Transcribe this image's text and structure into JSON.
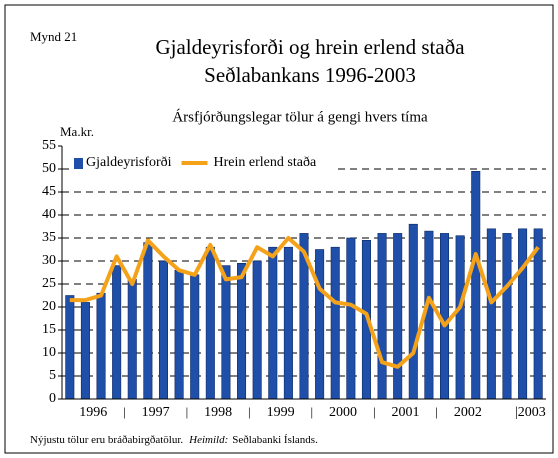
{
  "chart_data": {
    "type": "bar_line",
    "figure_label": "Mynd 21",
    "title": "Gjaldeyrisforði og hrein erlend staða",
    "title_line2": "Seðlabankans 1996-2003",
    "subtitle": "Ársfjórðungslegar tölur á gengi hvers tíma",
    "ylabel": "Ma.kr.",
    "categories": [
      null,
      "1996",
      null,
      null,
      null,
      "1997",
      null,
      null,
      null,
      "1998",
      null,
      null,
      null,
      "1999",
      null,
      null,
      null,
      "2000",
      null,
      null,
      null,
      "2001",
      null,
      null,
      null,
      "2002",
      null,
      null,
      null,
      "|2003",
      null
    ],
    "series": [
      {
        "name": "Gjaldeyrisforði",
        "color": "#1f4fa8",
        "kind": "bar",
        "values": [
          22.5,
          21,
          23,
          29,
          26,
          34,
          30,
          28,
          27,
          33,
          29,
          29.5,
          30,
          33,
          33,
          36,
          32.5,
          33,
          35,
          34.5,
          36,
          36,
          38,
          36.5,
          36,
          35.5,
          49.5,
          37,
          36,
          37,
          37
        ]
      },
      {
        "name": "Hrein erlend staða",
        "color": "#f5a21b",
        "kind": "line",
        "values": [
          21.5,
          21.5,
          22.5,
          31,
          25,
          34.5,
          31,
          28,
          27,
          33.5,
          26,
          26.5,
          33,
          31,
          35,
          32,
          24,
          21,
          20.5,
          18.5,
          8,
          7,
          10,
          22,
          16,
          20,
          31.5,
          21,
          24.5,
          28.5,
          33
        ]
      }
    ],
    "ylim": [
      0,
      55
    ],
    "yticks": [
      0,
      5,
      10,
      15,
      20,
      25,
      30,
      35,
      40,
      45,
      50,
      55
    ],
    "grid": true,
    "legend": "top-left",
    "footnote": "Nýjustu tölur eru bráðabirgðatölur.",
    "source_label": "Heimild:",
    "source": "Seðlabanki Íslands."
  }
}
